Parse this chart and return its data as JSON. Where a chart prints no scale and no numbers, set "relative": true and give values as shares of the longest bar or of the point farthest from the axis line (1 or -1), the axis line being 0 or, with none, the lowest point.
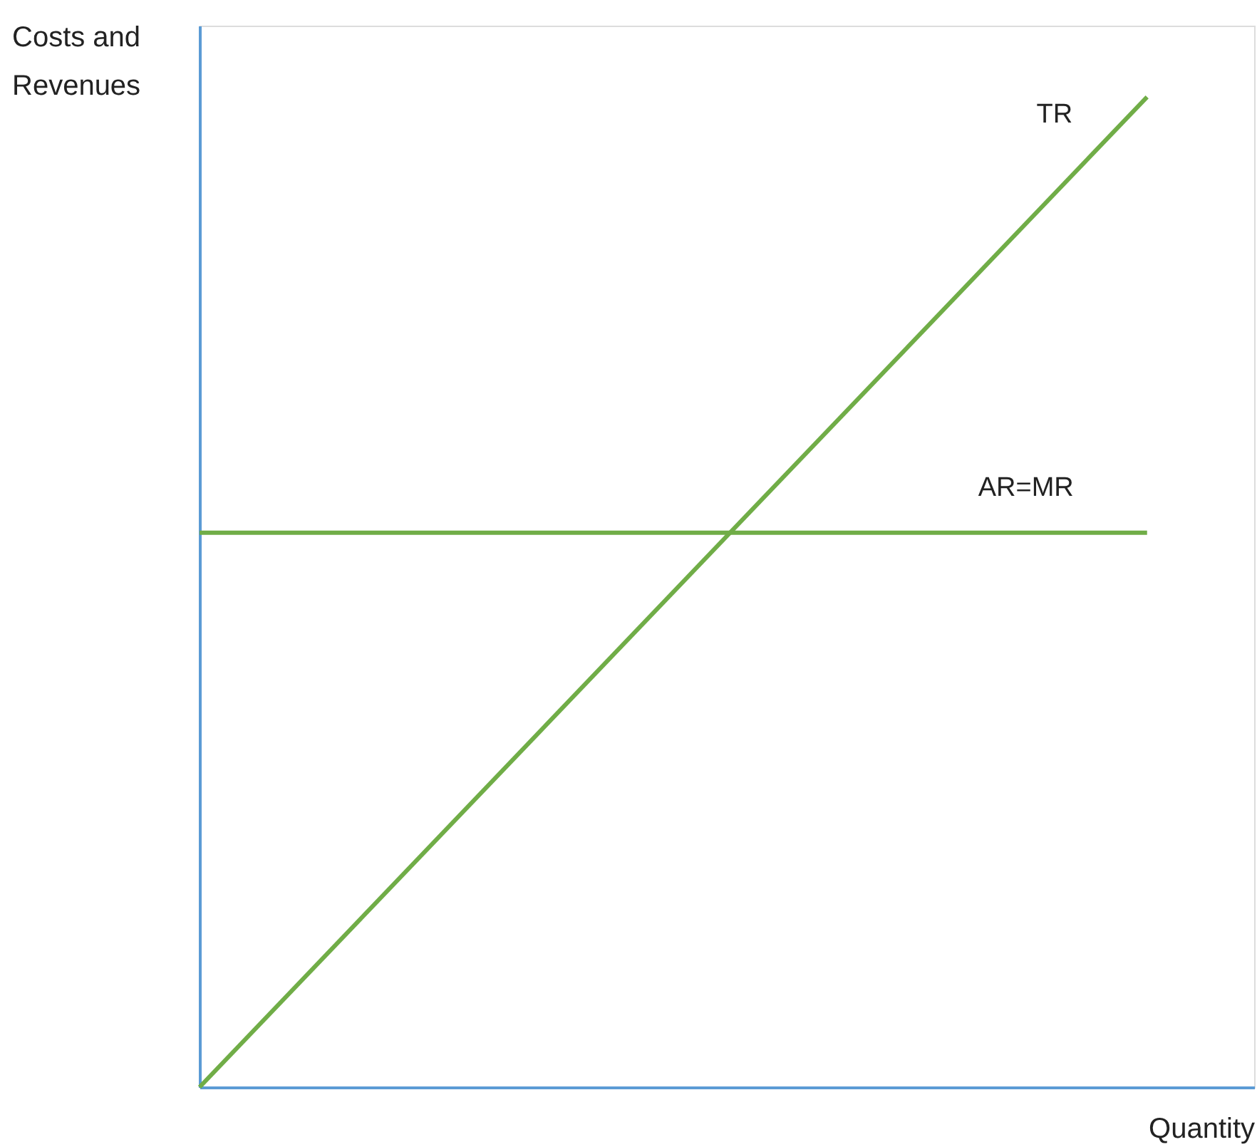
{
  "chart_data": {
    "type": "line",
    "relative": true,
    "xlabel": "Quantity",
    "ylabel": "Costs and Revenues",
    "line_style": "solid",
    "categories": [
      null,
      null
    ],
    "series": [
      {
        "name": "TR",
        "color": "#70ad47",
        "values": [
          0,
          1
        ]
      },
      {
        "name": "AR=MR",
        "color": "#70ad47",
        "values": [
          0.56,
          0.56
        ]
      }
    ]
  }
}
